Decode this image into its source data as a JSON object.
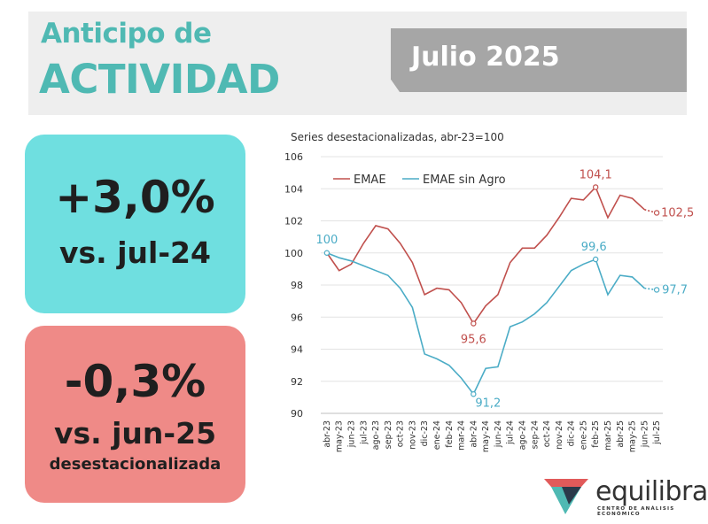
{
  "header": {
    "title_line1": "Anticipo de",
    "title_line2": "ACTIVIDAD",
    "date": "Julio 2025"
  },
  "cards": {
    "yoy": {
      "value": "+3,0%",
      "reference": "vs. jul-24"
    },
    "mom": {
      "value": "-0,3%",
      "reference": "vs. jun-25",
      "note": "desestacionalizada"
    }
  },
  "brand": {
    "name": "equilibra",
    "tagline": "CENTRO DE ANÁLISIS ECONÓMICO"
  },
  "colors": {
    "title": "#4fb9b3",
    "emae": "#c0504d",
    "emae_sin_agro": "#4bacc6",
    "card_yoy": "#6fdfe0",
    "card_mom": "#ef8a87"
  },
  "chart_data": {
    "type": "line",
    "title": "Series desestacionalizadas, abr-23=100",
    "categories": [
      "abr-23",
      "may-23",
      "jun-23",
      "jul-23",
      "ago-23",
      "sep-23",
      "oct-23",
      "nov-23",
      "dic-23",
      "ene-24",
      "feb-24",
      "mar-24",
      "abr-24",
      "may-24",
      "jun-24",
      "jul-24",
      "ago-24",
      "sep-24",
      "oct-24",
      "nov-24",
      "dic-24",
      "ene-25",
      "feb-25",
      "mar-25",
      "abr-25",
      "may-25",
      "jun-25",
      "jul-25"
    ],
    "ylim": [
      90,
      106
    ],
    "yticks": [
      90,
      92,
      94,
      96,
      98,
      100,
      102,
      104,
      106
    ],
    "legend": "top-left",
    "series": [
      {
        "name": "EMAE",
        "values": [
          100,
          98.9,
          99.3,
          100.6,
          101.7,
          101.5,
          100.6,
          99.4,
          97.4,
          97.8,
          97.7,
          96.9,
          95.6,
          96.7,
          97.4,
          99.4,
          100.3,
          100.3,
          101.1,
          102.2,
          103.4,
          103.3,
          104.1,
          102.2,
          103.6,
          103.4,
          102.7,
          102.5
        ]
      },
      {
        "name": "EMAE sin Agro",
        "values": [
          100,
          99.7,
          99.5,
          99.2,
          98.9,
          98.6,
          97.8,
          96.6,
          93.7,
          93.4,
          93.0,
          92.2,
          91.2,
          92.8,
          92.9,
          95.4,
          95.7,
          96.2,
          96.9,
          97.9,
          98.9,
          99.3,
          99.6,
          97.4,
          98.6,
          98.5,
          97.8,
          97.7
        ]
      }
    ],
    "annotations": [
      {
        "series": 0,
        "index": 0,
        "label": "100"
      },
      {
        "series": 0,
        "index": 12,
        "label": "95,6"
      },
      {
        "series": 0,
        "index": 22,
        "label": "104,1"
      },
      {
        "series": 0,
        "index": 27,
        "label": "102,5"
      },
      {
        "series": 1,
        "index": 12,
        "label": "91,2"
      },
      {
        "series": 1,
        "index": 22,
        "label": "99,6"
      },
      {
        "series": 1,
        "index": 27,
        "label": "97,7"
      }
    ]
  }
}
